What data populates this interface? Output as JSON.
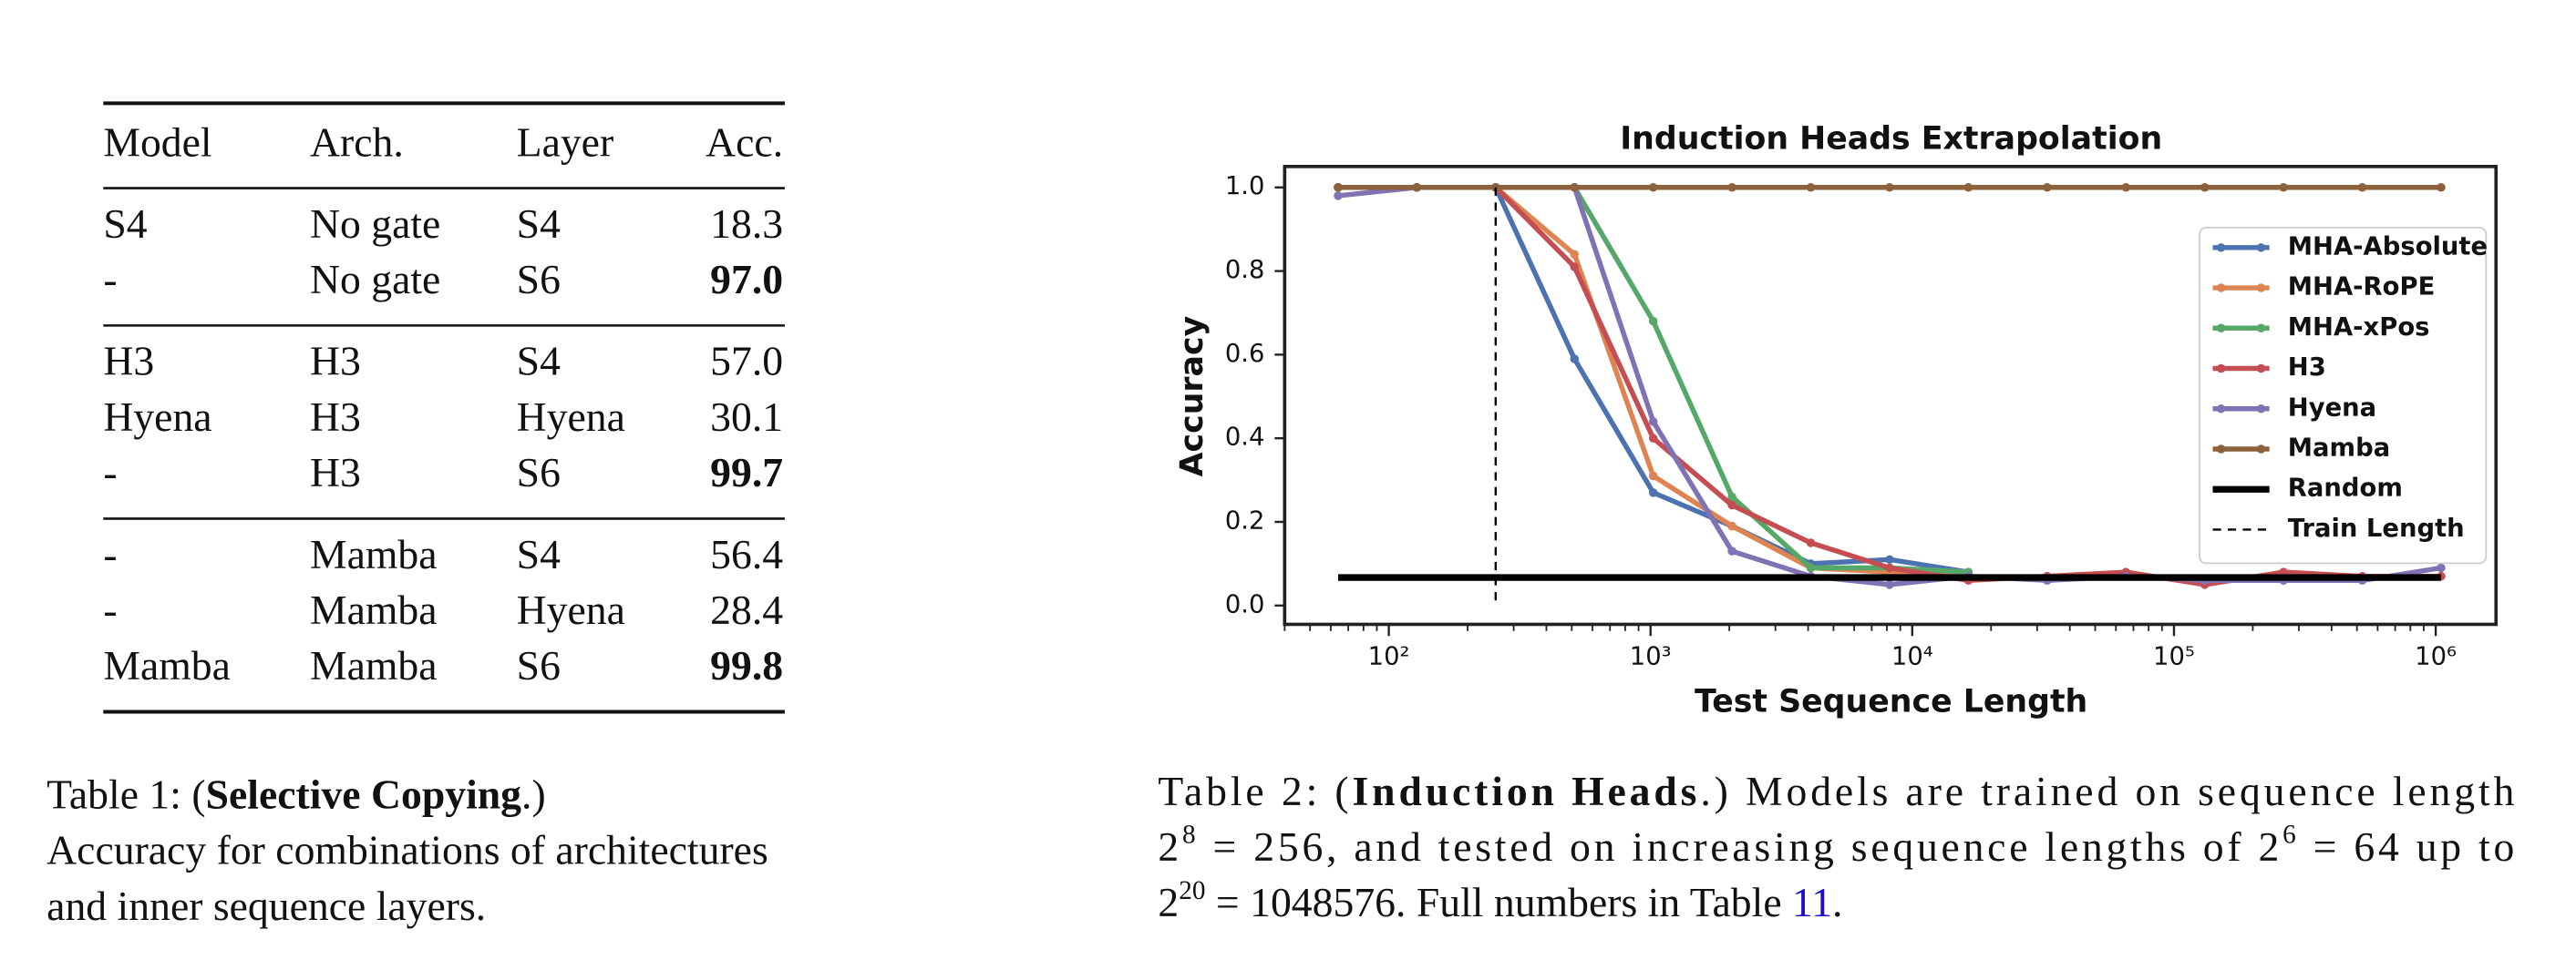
{
  "table": {
    "header": [
      "Model",
      "Arch.",
      "Layer",
      "Acc."
    ],
    "groups": [
      [
        [
          "S4",
          "No gate",
          "S4",
          "18.3"
        ],
        [
          "-",
          "No gate",
          "S6",
          "97.0"
        ]
      ],
      [
        [
          "H3",
          "H3",
          "S4",
          "57.0"
        ],
        [
          "Hyena",
          "H3",
          "Hyena",
          "30.1"
        ],
        [
          "-",
          "H3",
          "S6",
          "99.7"
        ]
      ],
      [
        [
          "-",
          "Mamba",
          "S4",
          "56.4"
        ],
        [
          "-",
          "Mamba",
          "Hyena",
          "28.4"
        ],
        [
          "Mamba",
          "Mamba",
          "S6",
          "99.8"
        ]
      ]
    ],
    "bold": [
      [
        0,
        1
      ],
      [
        1,
        2
      ],
      [
        2,
        2
      ]
    ]
  },
  "caption1": [
    [
      {
        "text": "Table 1: ("
      },
      {
        "text": "Selective Copying",
        "bold": true
      },
      {
        "text": ".)"
      }
    ],
    [
      {
        "text": "Accuracy for combinations of architectures"
      }
    ],
    [
      {
        "text": "and inner sequence layers."
      }
    ]
  ],
  "caption2": [
    [
      {
        "text": "Table 2: ("
      },
      {
        "text": "Induction Heads",
        "bold": true
      },
      {
        "text": ".)  Models are trained on sequence length"
      }
    ],
    [
      {
        "text": "2"
      },
      {
        "text": "8",
        "sup": true
      },
      {
        "text": " = 256, and tested on increasing sequence lengths of 2"
      },
      {
        "text": "6",
        "sup": true
      },
      {
        "text": " = 64 up to"
      }
    ],
    [
      {
        "text": "2"
      },
      {
        "text": "20",
        "sup": true
      },
      {
        "text": " = 1048576. Full numbers in Table "
      },
      {
        "text": "11",
        "link": true
      },
      {
        "text": "."
      }
    ]
  ],
  "chart_data": {
    "type": "line",
    "title": "Induction Heads Extrapolation",
    "xlabel": "Test Sequence Length",
    "ylabel": "Accuracy",
    "xscale": "log",
    "x": [
      64,
      128,
      256,
      512,
      1024,
      2048,
      4096,
      8192,
      16384,
      32768,
      65536,
      131072,
      262144,
      524288,
      1048576
    ],
    "xlim": [
      40,
      1700000
    ],
    "ylim": [
      -0.045,
      1.05
    ],
    "xticks": [
      {
        "value": 100,
        "label": "10²"
      },
      {
        "value": 1000,
        "label": "10³"
      },
      {
        "value": 10000,
        "label": "10⁴"
      },
      {
        "value": 100000,
        "label": "10⁵"
      },
      {
        "value": 1000000,
        "label": "10⁶"
      }
    ],
    "xminorticks": [
      40,
      50,
      60,
      70,
      80,
      90,
      200,
      300,
      400,
      500,
      600,
      700,
      800,
      900,
      2000,
      3000,
      4000,
      5000,
      6000,
      7000,
      8000,
      9000,
      20000,
      30000,
      40000,
      50000,
      60000,
      70000,
      80000,
      90000,
      200000,
      300000,
      400000,
      500000,
      600000,
      700000,
      800000,
      900000
    ],
    "yticks": [
      {
        "value": 0,
        "label": "0.0"
      },
      0.2,
      0.4,
      0.6,
      0.8,
      {
        "value": 1,
        "label": "1.0"
      }
    ],
    "legend": "center right",
    "series": [
      {
        "name": "MHA-Absolute",
        "color": "#4c72b0",
        "values": [
          1.0,
          1.0,
          1.0,
          0.59,
          0.27,
          0.19,
          0.1,
          0.11,
          0.08,
          null,
          null,
          null,
          null,
          null,
          null
        ]
      },
      {
        "name": "MHA-RoPE",
        "color": "#dd8452",
        "values": [
          1.0,
          1.0,
          1.0,
          0.84,
          0.31,
          0.19,
          0.09,
          0.08,
          0.07,
          null,
          null,
          null,
          null,
          null,
          null
        ]
      },
      {
        "name": "MHA-xPos",
        "color": "#55a868",
        "values": [
          1.0,
          1.0,
          1.0,
          1.0,
          0.68,
          0.26,
          0.09,
          0.09,
          0.08,
          null,
          null,
          null,
          null,
          null,
          null
        ]
      },
      {
        "name": "H3",
        "color": "#c44e52",
        "values": [
          1.0,
          1.0,
          1.0,
          0.81,
          0.4,
          0.24,
          0.15,
          0.09,
          0.06,
          0.07,
          0.08,
          0.05,
          0.08,
          0.07,
          0.07
        ]
      },
      {
        "name": "Hyena",
        "color": "#8172b3",
        "values": [
          0.98,
          1.0,
          1.0,
          1.0,
          0.44,
          0.13,
          0.07,
          0.05,
          0.07,
          0.06,
          0.07,
          0.06,
          0.06,
          0.06,
          0.09
        ]
      },
      {
        "name": "Mamba",
        "color": "#8c613c",
        "values": [
          1.0,
          1.0,
          1.0,
          1.0,
          1.0,
          1.0,
          1.0,
          1.0,
          1.0,
          1.0,
          1.0,
          1.0,
          1.0,
          1.0,
          1.0
        ]
      },
      {
        "name": "Random",
        "color": "#000000",
        "markers": false,
        "width": 4,
        "values": [
          0.067,
          0.067,
          0.067,
          0.067,
          0.067,
          0.067,
          0.067,
          0.067,
          0.067,
          0.067,
          0.067,
          0.067,
          0.067,
          0.067,
          0.067
        ]
      },
      {
        "name": "Train Length",
        "color": "#000000",
        "dash": true,
        "vline": 256
      }
    ]
  }
}
